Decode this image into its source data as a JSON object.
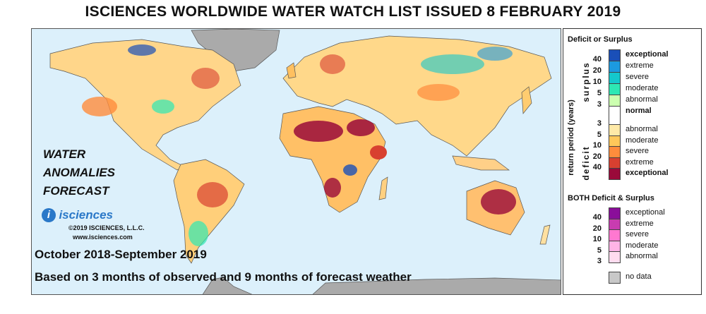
{
  "title": "ISCIENCES WORLDWIDE WATER WATCH LIST ISSUED 8 FEBRUARY 2019",
  "overlay": {
    "line1": "WATER",
    "line2": "ANOMALIES",
    "line3": "FORECAST",
    "period": "October 2018-September 2019",
    "basis": "Based on 3 months of observed and 9 months of forecast weather"
  },
  "logo": {
    "brand": "isciences",
    "copyright": "©2019 ISCIENCES, L.L.C.",
    "website": "www.isciences.com"
  },
  "legend": {
    "title": "Deficit or Surplus",
    "axis_label": "return period (years)",
    "surplus_label": "surplus",
    "deficit_label": "deficit",
    "surplus": [
      {
        "label": "exceptional",
        "color": "#1a4fb8"
      },
      {
        "label": "extreme",
        "color": "#1c9ae0"
      },
      {
        "label": "severe",
        "color": "#14c8cc"
      },
      {
        "label": "moderate",
        "color": "#2de8b4"
      },
      {
        "label": "abnormal",
        "color": "#ccffb0"
      }
    ],
    "surplus_numbers": [
      "40",
      "20",
      "10",
      "5",
      "3"
    ],
    "normal": {
      "label": "normal",
      "color": "#ffffff"
    },
    "deficit": [
      {
        "label": "abnormal",
        "color": "#ffeaa8"
      },
      {
        "label": "moderate",
        "color": "#ffc85a"
      },
      {
        "label": "severe",
        "color": "#ff8c3c"
      },
      {
        "label": "extreme",
        "color": "#d84030"
      },
      {
        "label": "exceptional",
        "color": "#9a0a3a"
      }
    ],
    "deficit_numbers": [
      "3",
      "5",
      "10",
      "20",
      "40"
    ],
    "both_title": "BOTH Deficit & Surplus",
    "both": [
      {
        "label": "exceptional",
        "color": "#8a0e9a"
      },
      {
        "label": "extreme",
        "color": "#c83cb0"
      },
      {
        "label": "severe",
        "color": "#ff78d0"
      },
      {
        "label": "moderate",
        "color": "#ffb4e6"
      },
      {
        "label": "abnormal",
        "color": "#ffdcef"
      }
    ],
    "both_numbers": [
      "40",
      "20",
      "10",
      "5",
      "3"
    ],
    "no_data": {
      "label": "no data",
      "color": "#c8c8c8"
    }
  },
  "colors": {
    "ocean": "#dcf0fb",
    "land_base": "#ffd890"
  }
}
